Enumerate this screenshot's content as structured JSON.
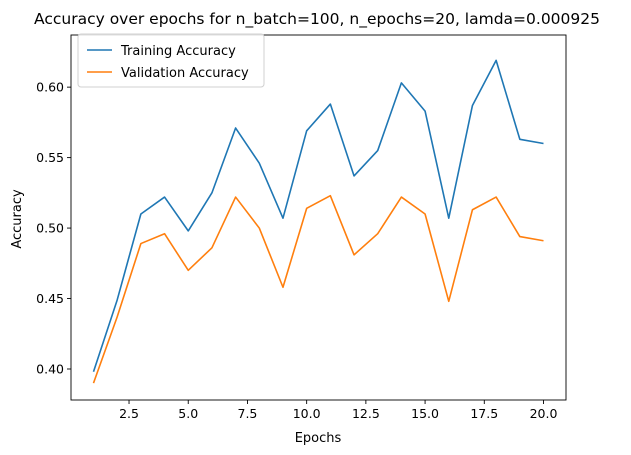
{
  "chart_data": {
    "type": "line",
    "title": "Accuracy over epochs for n_batch=100, n_epochs=20, lamda=0.000925",
    "xlabel": "Epochs",
    "ylabel": "Accuracy",
    "xlim": [
      0.05,
      20.95
    ],
    "ylim": [
      0.378,
      0.637
    ],
    "xticks": [
      2.5,
      5.0,
      7.5,
      10.0,
      12.5,
      15.0,
      17.5,
      20.0
    ],
    "xtick_labels": [
      "2.5",
      "5.0",
      "7.5",
      "10.0",
      "12.5",
      "15.0",
      "17.5",
      "20.0"
    ],
    "yticks": [
      0.4,
      0.45,
      0.5,
      0.55,
      0.6
    ],
    "ytick_labels": [
      "0.40",
      "0.45",
      "0.50",
      "0.55",
      "0.60"
    ],
    "grid": false,
    "legend_position": "top-left",
    "x": [
      1,
      2,
      3,
      4,
      5,
      6,
      7,
      8,
      9,
      10,
      11,
      12,
      13,
      14,
      15,
      16,
      17,
      18,
      19,
      20
    ],
    "series": [
      {
        "name": "Training Accuracy",
        "color": "#1f77b4",
        "values": [
          0.398,
          0.449,
          0.51,
          0.522,
          0.498,
          0.525,
          0.571,
          0.546,
          0.507,
          0.569,
          0.588,
          0.537,
          0.555,
          0.603,
          0.583,
          0.507,
          0.587,
          0.619,
          0.563,
          0.56
        ]
      },
      {
        "name": "Validation Accuracy",
        "color": "#ff7f0e",
        "values": [
          0.39,
          0.437,
          0.489,
          0.496,
          0.47,
          0.486,
          0.522,
          0.5,
          0.458,
          0.514,
          0.523,
          0.481,
          0.496,
          0.522,
          0.51,
          0.448,
          0.513,
          0.522,
          0.494,
          0.491
        ]
      }
    ]
  }
}
